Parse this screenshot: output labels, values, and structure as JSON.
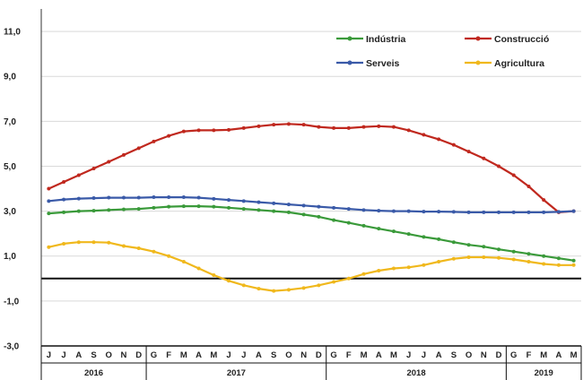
{
  "chart_data": {
    "type": "line",
    "ylim": [
      -3.0,
      12.0
    ],
    "yticks": [
      "11,0",
      "9,0",
      "7,0",
      "5,0",
      "3,0",
      "1,0",
      "-1,0",
      "-3,0"
    ],
    "ytick_values": [
      11,
      9,
      7,
      5,
      3,
      1,
      -1,
      -3
    ],
    "grid": true,
    "legend_position": "top-right",
    "x": [
      "J",
      "J",
      "A",
      "S",
      "O",
      "N",
      "D",
      "G",
      "F",
      "M",
      "A",
      "M",
      "J",
      "J",
      "A",
      "S",
      "O",
      "N",
      "D",
      "G",
      "F",
      "M",
      "A",
      "M",
      "J",
      "J",
      "A",
      "S",
      "O",
      "N",
      "D",
      "G",
      "F",
      "M",
      "A",
      "M"
    ],
    "years": [
      {
        "label": "2016",
        "start": 0,
        "end": 6
      },
      {
        "label": "2017",
        "start": 7,
        "end": 18
      },
      {
        "label": "2018",
        "start": 19,
        "end": 30
      },
      {
        "label": "2019",
        "start": 31,
        "end": 35
      }
    ],
    "series": [
      {
        "name": "Indústria",
        "color": "#3a9a3a",
        "values": [
          2.9,
          2.95,
          3.0,
          3.02,
          3.05,
          3.08,
          3.1,
          3.15,
          3.2,
          3.22,
          3.22,
          3.2,
          3.15,
          3.1,
          3.05,
          3.0,
          2.95,
          2.85,
          2.75,
          2.6,
          2.48,
          2.35,
          2.22,
          2.1,
          1.98,
          1.85,
          1.75,
          1.62,
          1.5,
          1.42,
          1.3,
          1.2,
          1.1,
          1.0,
          0.9,
          0.8
        ]
      },
      {
        "name": "Construcció",
        "color": "#c0281e",
        "values": [
          4.0,
          4.3,
          4.6,
          4.9,
          5.2,
          5.5,
          5.8,
          6.1,
          6.35,
          6.55,
          6.6,
          6.6,
          6.62,
          6.7,
          6.78,
          6.85,
          6.88,
          6.85,
          6.75,
          6.7,
          6.7,
          6.75,
          6.78,
          6.75,
          6.6,
          6.4,
          6.2,
          5.95,
          5.65,
          5.35,
          5.0,
          4.6,
          4.1,
          3.5,
          2.95,
          3.0
        ]
      },
      {
        "name": "Serveis",
        "color": "#3a5aa8",
        "values": [
          3.45,
          3.52,
          3.56,
          3.58,
          3.6,
          3.6,
          3.6,
          3.62,
          3.62,
          3.62,
          3.6,
          3.55,
          3.5,
          3.45,
          3.4,
          3.35,
          3.3,
          3.25,
          3.2,
          3.15,
          3.1,
          3.05,
          3.02,
          3.0,
          3.0,
          2.98,
          2.98,
          2.97,
          2.95,
          2.95,
          2.95,
          2.95,
          2.95,
          2.95,
          2.97,
          3.0
        ]
      },
      {
        "name": "Agricultura",
        "color": "#f0b81c",
        "values": [
          1.4,
          1.55,
          1.62,
          1.62,
          1.6,
          1.45,
          1.35,
          1.2,
          1.0,
          0.75,
          0.45,
          0.15,
          -0.1,
          -0.3,
          -0.45,
          -0.55,
          -0.5,
          -0.42,
          -0.3,
          -0.15,
          0.0,
          0.2,
          0.35,
          0.45,
          0.5,
          0.6,
          0.75,
          0.88,
          0.95,
          0.95,
          0.92,
          0.85,
          0.75,
          0.65,
          0.6,
          0.6
        ]
      }
    ]
  }
}
